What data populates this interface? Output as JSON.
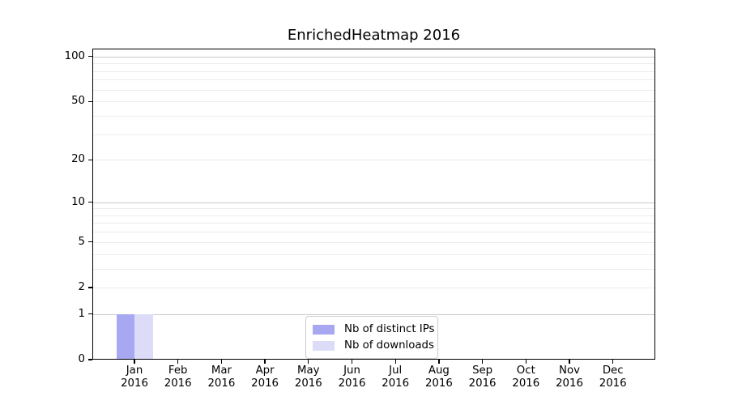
{
  "chart_data": {
    "type": "bar",
    "title": "EnrichedHeatmap 2016",
    "x_tick_months": [
      "Jan",
      "Feb",
      "Mar",
      "Apr",
      "May",
      "Jun",
      "Jul",
      "Aug",
      "Sep",
      "Oct",
      "Nov",
      "Dec"
    ],
    "x_tick_year": "2016",
    "series": [
      {
        "name": "Nb of distinct IPs",
        "color": "#a8a8f2",
        "values": [
          1,
          0,
          0,
          0,
          0,
          0,
          0,
          0,
          0,
          0,
          0,
          0
        ]
      },
      {
        "name": "Nb of downloads",
        "color": "#dcdcf9",
        "values": [
          1,
          0,
          0,
          0,
          0,
          0,
          0,
          0,
          0,
          0,
          0,
          0
        ]
      }
    ],
    "yscale": "log1p",
    "ylim": [
      0,
      113
    ],
    "y_ticks_labeled": [
      0,
      1,
      2,
      5,
      10,
      20,
      50,
      100
    ],
    "y_ticks_minor": [
      3,
      4,
      6,
      7,
      8,
      9,
      30,
      40,
      60,
      70,
      80,
      90
    ],
    "y_gridlines_major": [
      1,
      10,
      100
    ],
    "grid": "both",
    "legend": {
      "position": "lower center"
    },
    "colors": {
      "frame": "#000000",
      "grid_major": "#c9c9c9",
      "grid_minor": "#ececec",
      "background": "#ffffff"
    }
  }
}
